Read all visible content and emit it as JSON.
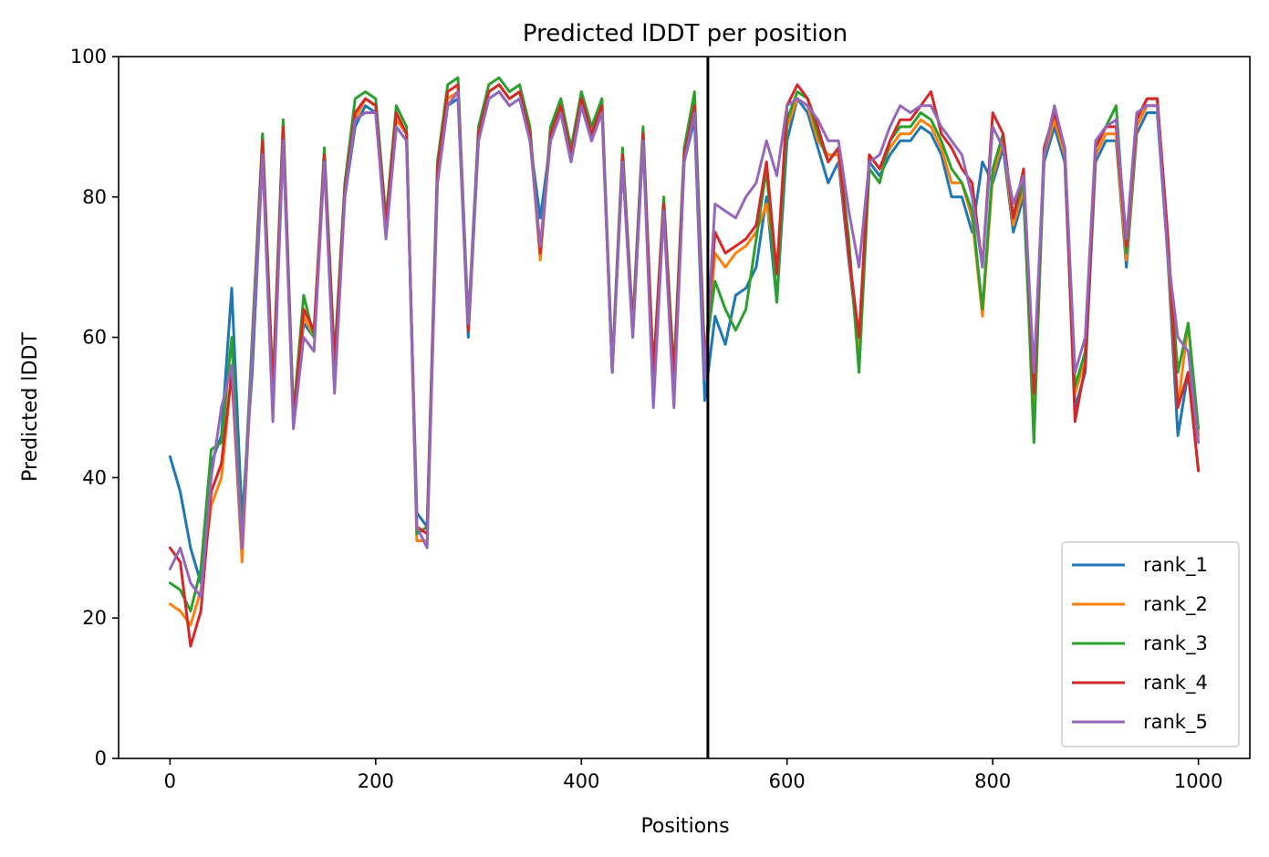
{
  "chart_data": {
    "type": "line",
    "title": "Predicted lDDT per position",
    "xlabel": "Positions",
    "ylabel": "Predicted lDDT",
    "xlim": [
      -50,
      1050
    ],
    "ylim": [
      0,
      100
    ],
    "xticks": [
      0,
      200,
      400,
      600,
      800,
      1000
    ],
    "yticks": [
      0,
      20,
      40,
      60,
      80,
      100
    ],
    "xtick_labels": [
      "0",
      "200",
      "400",
      "600",
      "800",
      "1000"
    ],
    "ytick_labels": [
      "0",
      "20",
      "40",
      "60",
      "80",
      "100"
    ],
    "grid": false,
    "legend_position": "lower-right",
    "vline_x": 523,
    "x": [
      0,
      10,
      20,
      30,
      40,
      50,
      60,
      70,
      80,
      90,
      100,
      110,
      120,
      130,
      140,
      150,
      160,
      170,
      180,
      190,
      200,
      210,
      220,
      230,
      240,
      250,
      260,
      270,
      280,
      290,
      300,
      310,
      320,
      330,
      340,
      350,
      360,
      370,
      380,
      390,
      400,
      410,
      420,
      430,
      440,
      450,
      460,
      470,
      480,
      490,
      500,
      510,
      520,
      530,
      540,
      550,
      560,
      570,
      580,
      590,
      600,
      610,
      620,
      630,
      640,
      650,
      660,
      670,
      680,
      690,
      700,
      710,
      720,
      730,
      740,
      750,
      760,
      770,
      780,
      790,
      800,
      810,
      820,
      830,
      840,
      850,
      860,
      870,
      880,
      890,
      900,
      910,
      920,
      930,
      940,
      950,
      960,
      970,
      980,
      990,
      1000
    ],
    "series": [
      {
        "name": "rank_1",
        "color": "#1f77b4",
        "values": [
          43,
          38,
          30,
          25,
          42,
          46,
          67,
          34,
          55,
          86,
          52,
          88,
          49,
          62,
          60,
          85,
          55,
          80,
          90,
          93,
          92,
          75,
          90,
          88,
          35,
          33,
          82,
          93,
          94,
          60,
          88,
          94,
          95,
          93,
          94,
          88,
          77,
          88,
          92,
          85,
          93,
          88,
          93,
          55,
          85,
          60,
          88,
          55,
          78,
          53,
          85,
          91,
          51,
          63,
          59,
          66,
          67,
          70,
          80,
          65,
          88,
          94,
          92,
          87,
          82,
          85,
          71,
          58,
          85,
          83,
          86,
          88,
          88,
          90,
          89,
          86,
          80,
          80,
          75,
          85,
          82,
          87,
          75,
          80,
          48,
          85,
          90,
          85,
          50,
          55,
          85,
          88,
          88,
          70,
          89,
          92,
          92,
          72,
          46,
          55,
          41
        ]
      },
      {
        "name": "rank_2",
        "color": "#ff7f0e",
        "values": [
          22,
          21,
          19,
          24,
          36,
          40,
          55,
          28,
          58,
          87,
          50,
          89,
          48,
          63,
          60,
          86,
          56,
          81,
          91,
          94,
          93,
          76,
          91,
          89,
          31,
          31,
          83,
          94,
          95,
          61,
          89,
          95,
          96,
          94,
          95,
          89,
          71,
          89,
          93,
          86,
          94,
          89,
          93,
          55,
          86,
          61,
          89,
          54,
          79,
          54,
          86,
          92,
          55,
          72,
          70,
          72,
          73,
          75,
          79,
          70,
          90,
          94,
          93,
          88,
          86,
          86,
          72,
          58,
          86,
          84,
          87,
          89,
          89,
          91,
          90,
          87,
          82,
          82,
          77,
          63,
          83,
          88,
          76,
          81,
          50,
          86,
          91,
          86,
          52,
          57,
          86,
          89,
          89,
          71,
          90,
          93,
          93,
          73,
          50,
          62,
          46
        ]
      },
      {
        "name": "rank_3",
        "color": "#2ca02c",
        "values": [
          25,
          24,
          21,
          27,
          44,
          45,
          60,
          31,
          60,
          89,
          53,
          91,
          49,
          66,
          60,
          87,
          57,
          82,
          94,
          95,
          94,
          77,
          93,
          90,
          32,
          33,
          85,
          96,
          97,
          62,
          90,
          96,
          97,
          95,
          96,
          90,
          72,
          90,
          94,
          87,
          95,
          90,
          94,
          56,
          87,
          62,
          90,
          55,
          80,
          55,
          87,
          95,
          57,
          68,
          64,
          61,
          64,
          74,
          84,
          65,
          91,
          95,
          94,
          89,
          85,
          87,
          74,
          55,
          84,
          82,
          88,
          90,
          90,
          92,
          91,
          88,
          84,
          82,
          78,
          64,
          84,
          89,
          77,
          82,
          45,
          87,
          92,
          87,
          53,
          58,
          87,
          90,
          93,
          72,
          91,
          94,
          94,
          74,
          55,
          62,
          47
        ]
      },
      {
        "name": "rank_4",
        "color": "#d62728",
        "values": [
          30,
          28,
          16,
          21,
          38,
          42,
          55,
          30,
          58,
          88,
          52,
          90,
          48,
          64,
          61,
          86,
          56,
          81,
          92,
          94,
          93,
          76,
          92,
          89,
          33,
          32,
          84,
          95,
          96,
          61,
          89,
          95,
          96,
          94,
          95,
          89,
          72,
          89,
          93,
          86,
          94,
          89,
          93,
          55,
          86,
          61,
          89,
          55,
          79,
          54,
          86,
          93,
          56,
          75,
          72,
          73,
          74,
          76,
          85,
          69,
          93,
          96,
          94,
          90,
          85,
          87,
          72,
          60,
          86,
          84,
          88,
          91,
          91,
          93,
          95,
          89,
          87,
          84,
          82,
          70,
          92,
          89,
          77,
          84,
          52,
          87,
          92,
          87,
          48,
          56,
          87,
          90,
          90,
          73,
          91,
          94,
          94,
          75,
          50,
          55,
          41
        ]
      },
      {
        "name": "rank_5",
        "color": "#9467bd",
        "values": [
          27,
          30,
          25,
          23,
          40,
          50,
          56,
          30,
          58,
          86,
          48,
          88,
          47,
          60,
          58,
          85,
          52,
          80,
          91,
          92,
          92,
          74,
          90,
          88,
          33,
          30,
          82,
          93,
          95,
          62,
          88,
          94,
          95,
          93,
          94,
          88,
          73,
          88,
          92,
          85,
          93,
          88,
          92,
          55,
          85,
          60,
          88,
          50,
          78,
          50,
          85,
          92,
          54,
          79,
          78,
          77,
          80,
          82,
          88,
          83,
          93,
          94,
          93,
          91,
          88,
          88,
          78,
          70,
          85,
          86,
          90,
          93,
          92,
          93,
          93,
          90,
          88,
          86,
          80,
          70,
          90,
          87,
          79,
          83,
          55,
          86,
          93,
          87,
          55,
          60,
          88,
          90,
          91,
          74,
          92,
          93,
          93,
          72,
          60,
          58,
          45
        ]
      }
    ]
  }
}
